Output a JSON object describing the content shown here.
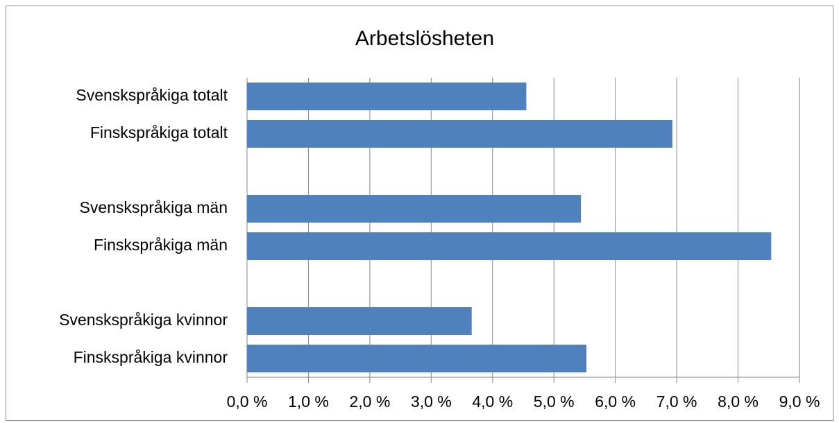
{
  "chart_data": {
    "type": "bar",
    "orientation": "horizontal",
    "title": "Arbetslösheten",
    "categories": [
      "Svenskspråkiga totalt",
      "Finskspråkiga totalt",
      null,
      "Svenskspråkiga män",
      "Finskspråkiga män",
      null,
      "Svenskspråkiga kvinnor",
      "Finskspråkiga kvinnor"
    ],
    "values": [
      4.55,
      6.93,
      null,
      5.44,
      8.54,
      null,
      3.66,
      5.53
    ],
    "color": "#4f81bd",
    "xlim": [
      0,
      9
    ],
    "xticks": [
      {
        "value": 0,
        "label": "0,0 %"
      },
      {
        "value": 1,
        "label": "1,0 %"
      },
      {
        "value": 2,
        "label": "2,0 %"
      },
      {
        "value": 3,
        "label": "3,0 %"
      },
      {
        "value": 4,
        "label": "4,0 %"
      },
      {
        "value": 5,
        "label": "5,0 %"
      },
      {
        "value": 6,
        "label": "6,0 %"
      },
      {
        "value": 7,
        "label": "7,0 %"
      },
      {
        "value": 8,
        "label": "8,0 %"
      },
      {
        "value": 9,
        "label": "9,0 %"
      }
    ],
    "grid": true
  }
}
